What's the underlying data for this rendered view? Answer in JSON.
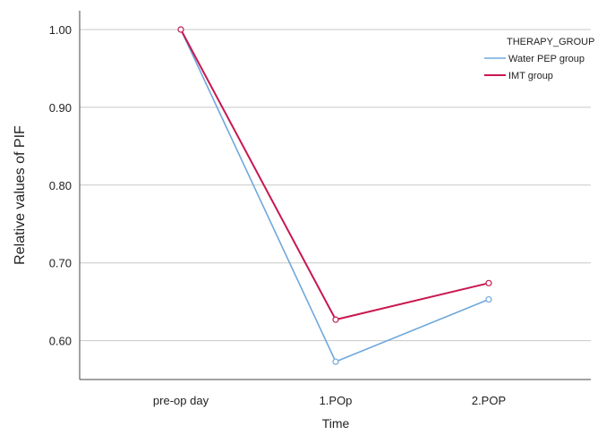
{
  "chart_data": {
    "type": "line",
    "title": "",
    "xlabel": "Time",
    "ylabel": "Relative values of PIF",
    "categories": [
      "pre-op day",
      "1.POp",
      "2.POP"
    ],
    "ylim": [
      0.55,
      1.03
    ],
    "yticks": [
      0.6,
      0.7,
      0.8,
      0.9,
      1.0
    ],
    "ytick_labels": [
      "0.60",
      "0.70",
      "0.80",
      "0.90",
      "1.00"
    ],
    "grid": true,
    "legend_title": "THERAPY_GROUP",
    "legend_position": "top-right",
    "series": [
      {
        "name": "Water PEP group",
        "color": "#6fa8dc",
        "values": [
          1.0,
          0.573,
          0.653
        ]
      },
      {
        "name": "IMT group",
        "color": "#c8174f",
        "values": [
          1.0,
          0.627,
          0.674
        ]
      }
    ]
  }
}
